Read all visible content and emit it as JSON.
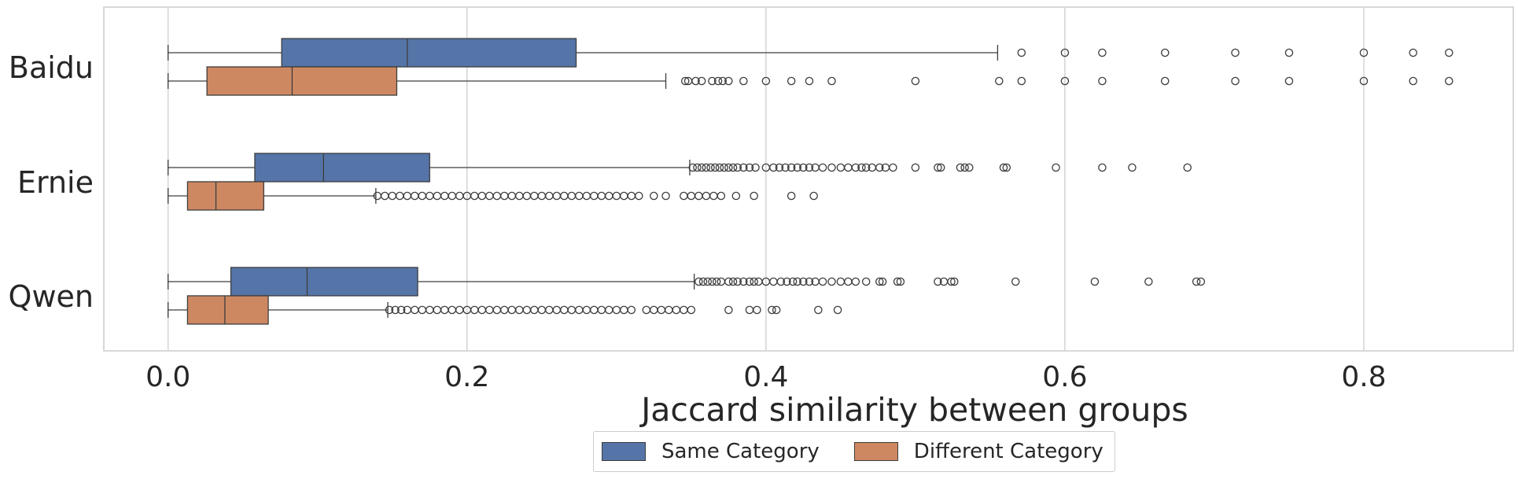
{
  "chart_data": {
    "type": "boxplot",
    "orientation": "horizontal",
    "title": "",
    "xlabel": "Jaccard similarity between groups",
    "ylabel": "",
    "xlim": [
      -0.043,
      0.9
    ],
    "xticks": [
      0.0,
      0.2,
      0.4,
      0.6,
      0.8
    ],
    "xtick_labels": [
      "0.0",
      "0.2",
      "0.4",
      "0.6",
      "0.8"
    ],
    "grid": "vertical",
    "legend_position": "bottom-center",
    "categories": [
      "Baidu",
      "Ernie",
      "Qwen"
    ],
    "series": [
      {
        "name": "Same Category",
        "color": "#5575a8",
        "boxes": [
          {
            "category": "Baidu",
            "whislo": 0.0,
            "q1": 0.076,
            "median": 0.16,
            "q3": 0.273,
            "whishi": 0.555,
            "fliers": [
              0.571,
              0.6,
              0.625,
              0.667,
              0.714,
              0.75,
              0.8,
              0.833,
              0.857
            ]
          },
          {
            "category": "Ernie",
            "whislo": 0.0,
            "q1": 0.058,
            "median": 0.104,
            "q3": 0.175,
            "whishi": 0.349,
            "fliers": [
              0.351,
              0.354,
              0.357,
              0.36,
              0.363,
              0.366,
              0.369,
              0.372,
              0.375,
              0.378,
              0.381,
              0.385,
              0.389,
              0.393,
              0.4,
              0.405,
              0.409,
              0.413,
              0.417,
              0.421,
              0.425,
              0.429,
              0.433,
              0.438,
              0.444,
              0.45,
              0.455,
              0.46,
              0.464,
              0.467,
              0.471,
              0.476,
              0.48,
              0.485,
              0.5,
              0.515,
              0.517,
              0.53,
              0.533,
              0.536,
              0.559,
              0.561,
              0.594,
              0.625,
              0.645,
              0.682
            ]
          },
          {
            "category": "Qwen",
            "whislo": 0.0,
            "q1": 0.042,
            "median": 0.093,
            "q3": 0.167,
            "whishi": 0.352,
            "fliers": [
              0.355,
              0.358,
              0.361,
              0.364,
              0.367,
              0.37,
              0.375,
              0.378,
              0.381,
              0.385,
              0.389,
              0.392,
              0.395,
              0.4,
              0.405,
              0.41,
              0.414,
              0.418,
              0.421,
              0.425,
              0.429,
              0.433,
              0.438,
              0.444,
              0.45,
              0.455,
              0.46,
              0.467,
              0.476,
              0.478,
              0.488,
              0.49,
              0.515,
              0.519,
              0.524,
              0.526,
              0.567,
              0.62,
              0.656,
              0.688,
              0.691
            ]
          }
        ]
      },
      {
        "name": "Different Category",
        "color": "#cd8862",
        "boxes": [
          {
            "category": "Baidu",
            "whislo": 0.0,
            "q1": 0.026,
            "median": 0.083,
            "q3": 0.153,
            "whishi": 0.333,
            "fliers": [
              0.346,
              0.348,
              0.353,
              0.357,
              0.364,
              0.368,
              0.371,
              0.375,
              0.385,
              0.4,
              0.417,
              0.429,
              0.444,
              0.5,
              0.556,
              0.571,
              0.6,
              0.625,
              0.667,
              0.714,
              0.75,
              0.8,
              0.833,
              0.857
            ]
          },
          {
            "category": "Ernie",
            "whislo": 0.0,
            "q1": 0.013,
            "median": 0.032,
            "q3": 0.064,
            "whishi": 0.139,
            "fliers": [
              0.14,
              0.145,
              0.15,
              0.155,
              0.16,
              0.165,
              0.17,
              0.175,
              0.18,
              0.185,
              0.19,
              0.195,
              0.2,
              0.205,
              0.21,
              0.215,
              0.22,
              0.225,
              0.23,
              0.235,
              0.24,
              0.245,
              0.25,
              0.255,
              0.26,
              0.265,
              0.27,
              0.275,
              0.28,
              0.285,
              0.29,
              0.295,
              0.3,
              0.305,
              0.31,
              0.315,
              0.325,
              0.333,
              0.345,
              0.35,
              0.355,
              0.36,
              0.365,
              0.37,
              0.38,
              0.392,
              0.417,
              0.432
            ]
          },
          {
            "category": "Qwen",
            "whislo": 0.0,
            "q1": 0.013,
            "median": 0.038,
            "q3": 0.067,
            "whishi": 0.147,
            "fliers": [
              0.148,
              0.152,
              0.156,
              0.16,
              0.165,
              0.17,
              0.175,
              0.18,
              0.185,
              0.19,
              0.195,
              0.2,
              0.205,
              0.21,
              0.215,
              0.22,
              0.225,
              0.23,
              0.235,
              0.24,
              0.245,
              0.25,
              0.255,
              0.26,
              0.265,
              0.27,
              0.275,
              0.28,
              0.285,
              0.29,
              0.295,
              0.3,
              0.305,
              0.31,
              0.32,
              0.325,
              0.33,
              0.335,
              0.34,
              0.345,
              0.35,
              0.375,
              0.389,
              0.394,
              0.404,
              0.407,
              0.435,
              0.448
            ]
          }
        ]
      }
    ]
  }
}
